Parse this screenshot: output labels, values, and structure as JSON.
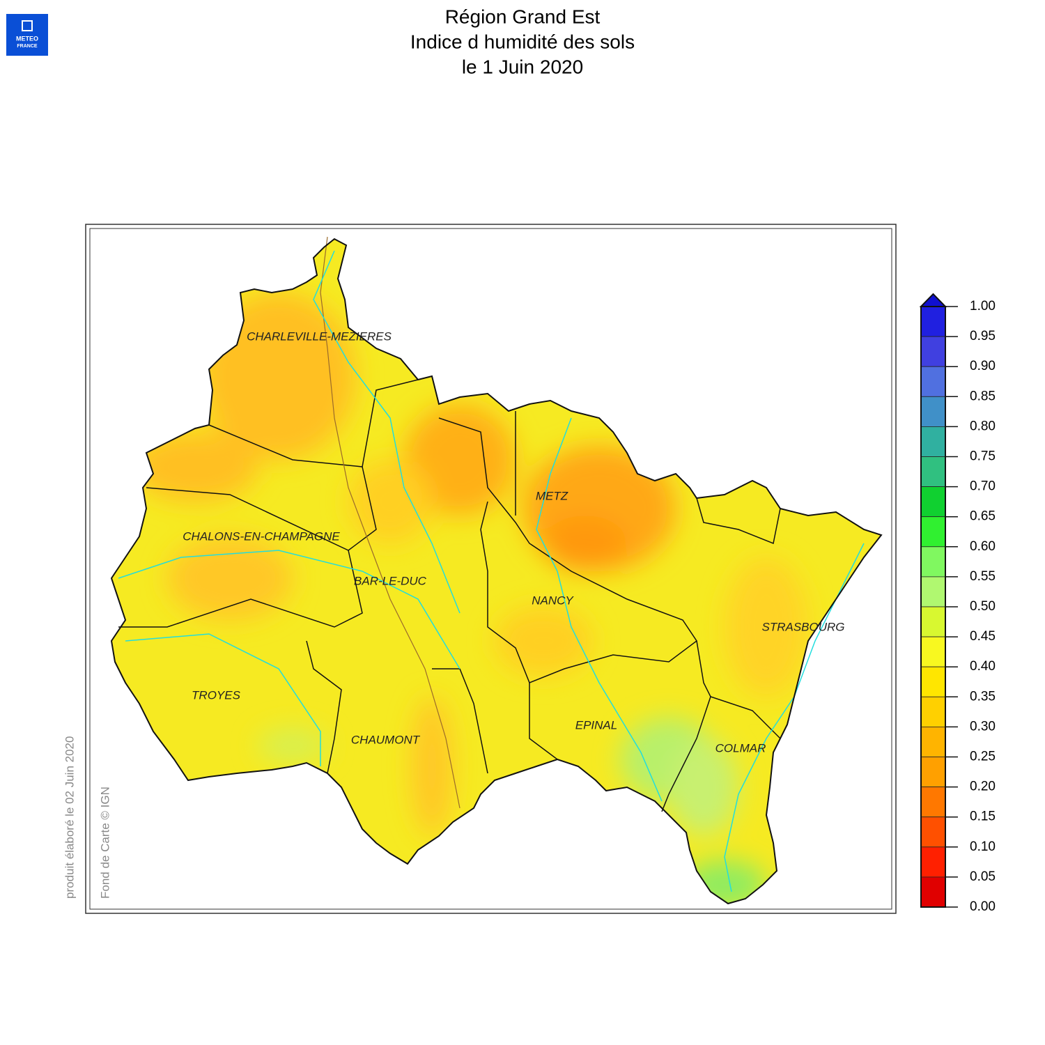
{
  "header": {
    "title": [
      "Région Grand Est",
      "Indice d humidité des sols",
      "le 1 Juin 2020"
    ]
  },
  "logo": {
    "lines": [
      "METEO",
      "FRANCE"
    ]
  },
  "credits": [
    "produit élaboré le 02 Juin 2020",
    "Fond de Carte © IGN"
  ],
  "cities": [
    {
      "label": "CHARLEVILLE-MEZIERES"
    },
    {
      "label": "METZ"
    },
    {
      "label": "CHALONS-EN-CHAMPAGNE"
    },
    {
      "label": "BAR-LE-DUC"
    },
    {
      "label": "NANCY"
    },
    {
      "label": "STRASBOURG"
    },
    {
      "label": "TROYES"
    },
    {
      "label": "CHAUMONT"
    },
    {
      "label": "EPINAL"
    },
    {
      "label": "COLMAR"
    }
  ],
  "legend": {
    "ticks": [
      "1.00",
      "0.95",
      "0.90",
      "0.85",
      "0.80",
      "0.75",
      "0.70",
      "0.65",
      "0.60",
      "0.55",
      "0.50",
      "0.45",
      "0.40",
      "0.35",
      "0.30",
      "0.25",
      "0.20",
      "0.15",
      "0.10",
      "0.05",
      "0.00"
    ],
    "colors": [
      "#2020e0",
      "#4040e0",
      "#5070e0",
      "#4090c8",
      "#30b0a0",
      "#30c080",
      "#10d030",
      "#30f030",
      "#80f860",
      "#b0f870",
      "#d8f830",
      "#f8f820",
      "#ffe600",
      "#ffd000",
      "#ffb400",
      "#ffa000",
      "#ff7800",
      "#ff5000",
      "#ff2000",
      "#e00000"
    ]
  }
}
